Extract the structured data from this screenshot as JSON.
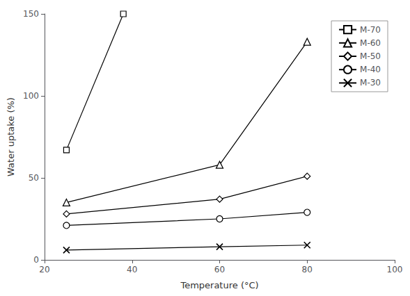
{
  "chart_data": {
    "type": "line",
    "xlabel": "Temperature (°C)",
    "ylabel": "Water uptake (%)",
    "series": [
      {
        "name": "M-70",
        "x": [
          25,
          38
        ],
        "values": [
          67,
          150
        ],
        "marker": "square",
        "line_style": "solid",
        "color": "#000000"
      },
      {
        "name": "M-60",
        "x": [
          25,
          60,
          80
        ],
        "values": [
          35,
          58,
          133
        ],
        "marker": "triangle",
        "line_style": "solid",
        "color": "#000000"
      },
      {
        "name": "M-50",
        "x": [
          25,
          60,
          80
        ],
        "values": [
          28,
          37,
          51
        ],
        "marker": "diamond",
        "line_style": "solid",
        "color": "#000000"
      },
      {
        "name": "M-40",
        "x": [
          25,
          60,
          80
        ],
        "values": [
          21,
          25,
          29
        ],
        "marker": "circle",
        "line_style": "solid",
        "color": "#000000"
      },
      {
        "name": "M-30",
        "x": [
          25,
          60,
          80
        ],
        "values": [
          6,
          8,
          9
        ],
        "marker": "x",
        "line_style": "solid",
        "color": "#000000"
      }
    ],
    "xlim": [
      20,
      100
    ],
    "ylim": [
      0,
      150
    ],
    "xticks": [
      20,
      40,
      60,
      80,
      100
    ],
    "yticks": [
      0,
      50,
      100,
      150
    ],
    "grid": false,
    "legend": "upper right"
  }
}
